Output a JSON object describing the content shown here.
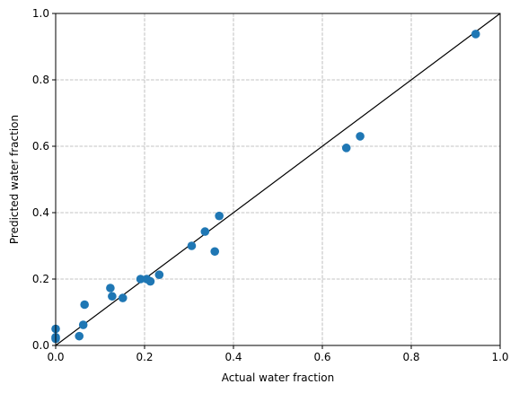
{
  "chart_data": {
    "type": "scatter",
    "title": "",
    "xlabel": "Actual water fraction",
    "ylabel": "Predicted water fraction",
    "xlim": [
      0,
      1
    ],
    "ylim": [
      0,
      1
    ],
    "xticks": [
      "0.0",
      "0.2",
      "0.4",
      "0.6",
      "0.8",
      "1.0"
    ],
    "yticks": [
      "0.0",
      "0.2",
      "0.4",
      "0.6",
      "0.8",
      "1.0"
    ],
    "grid": true,
    "grid_style": "dashed",
    "reference_line": {
      "from": [
        0,
        0
      ],
      "to": [
        1,
        1
      ],
      "color": "#000000"
    },
    "marker_color": "#1f77b4",
    "points": [
      {
        "x": 0.0,
        "y": 0.05
      },
      {
        "x": 0.0,
        "y": 0.025
      },
      {
        "x": 0.0,
        "y": 0.02
      },
      {
        "x": 0.053,
        "y": 0.028
      },
      {
        "x": 0.062,
        "y": 0.062
      },
      {
        "x": 0.065,
        "y": 0.123
      },
      {
        "x": 0.123,
        "y": 0.173
      },
      {
        "x": 0.127,
        "y": 0.148
      },
      {
        "x": 0.151,
        "y": 0.143
      },
      {
        "x": 0.191,
        "y": 0.2
      },
      {
        "x": 0.205,
        "y": 0.2
      },
      {
        "x": 0.213,
        "y": 0.193
      },
      {
        "x": 0.233,
        "y": 0.213
      },
      {
        "x": 0.306,
        "y": 0.3
      },
      {
        "x": 0.336,
        "y": 0.343
      },
      {
        "x": 0.358,
        "y": 0.283
      },
      {
        "x": 0.368,
        "y": 0.39
      },
      {
        "x": 0.654,
        "y": 0.595
      },
      {
        "x": 0.685,
        "y": 0.63
      },
      {
        "x": 0.945,
        "y": 0.938
      }
    ]
  }
}
